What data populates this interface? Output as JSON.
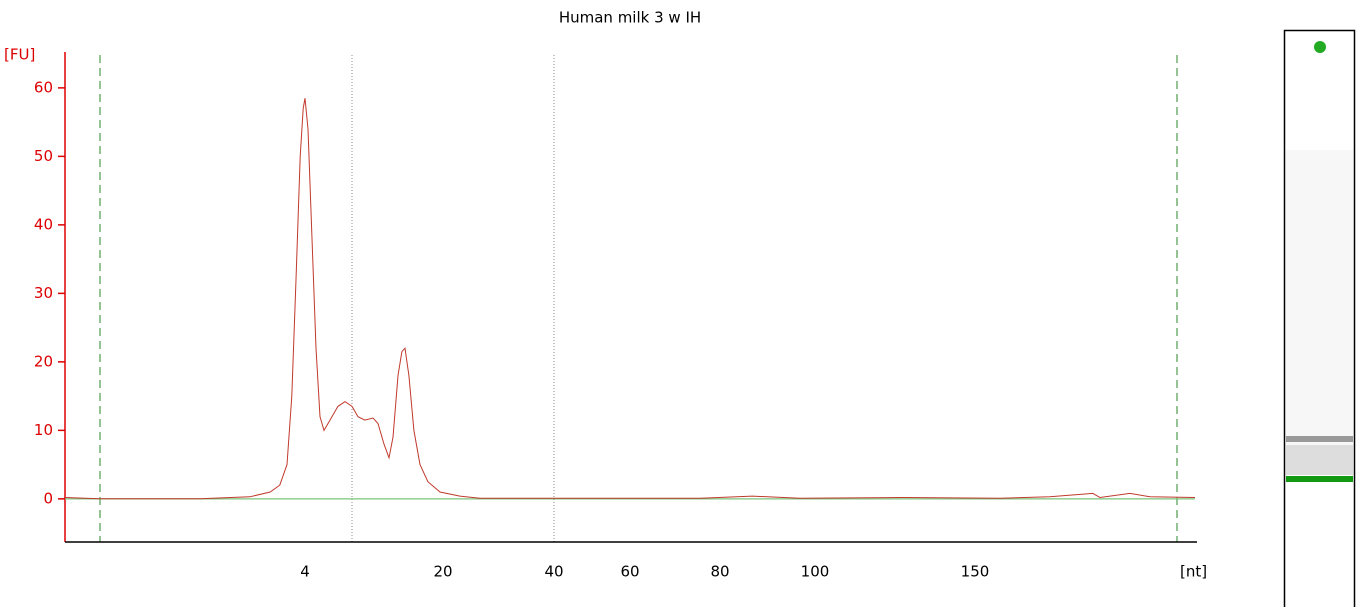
{
  "chart_data": {
    "type": "line",
    "title": "Human milk 3 w IH",
    "y_label": "[FU]",
    "x_label": "[nt]",
    "ylim": [
      -6.3,
      64.8
    ],
    "yticks": [
      0,
      10,
      20,
      30,
      40,
      50,
      60
    ],
    "xlim": [
      0,
      200
    ],
    "xticks": [
      4,
      20,
      40,
      60,
      80,
      100,
      150
    ],
    "series": [
      {
        "color": "#c0392b",
        "x": [
          0,
          0.58,
          1.42,
          2.25,
          3.08,
          3.42,
          3.58,
          3.7,
          3.78,
          3.85,
          3.92,
          3.97,
          4,
          4.35,
          4.81,
          5.27,
          5.74,
          6.2,
          6.9,
          7.82,
          8.64,
          9.45,
          10.14,
          10.95,
          11.88,
          12.46,
          13.16,
          13.74,
          14.2,
          14.78,
          15.24,
          15.59,
          16.05,
          16.63,
          17.33,
          18.25,
          19.65,
          23.04,
          26.65,
          33.86,
          51.9,
          75.6,
          86.8,
          96.8,
          127.2,
          155.7,
          167,
          176.8,
          178.4,
          185.2,
          189.8,
          200
        ],
        "values": [
          0.2,
          0,
          0,
          0,
          0.3,
          1,
          2,
          5,
          15,
          32,
          50,
          57,
          58.5,
          54,
          38,
          22,
          12,
          10,
          11.5,
          13.5,
          14.2,
          13.5,
          12,
          11.5,
          11.8,
          11,
          8,
          6,
          9,
          18,
          21.5,
          22,
          18,
          10,
          5,
          2.5,
          1,
          0.4,
          0.1,
          0.1,
          0.1,
          0.1,
          0.4,
          0.1,
          0.2,
          0.1,
          0.3,
          0.8,
          0.2,
          0.8,
          0.3,
          0.2
        ]
      }
    ]
  }
}
